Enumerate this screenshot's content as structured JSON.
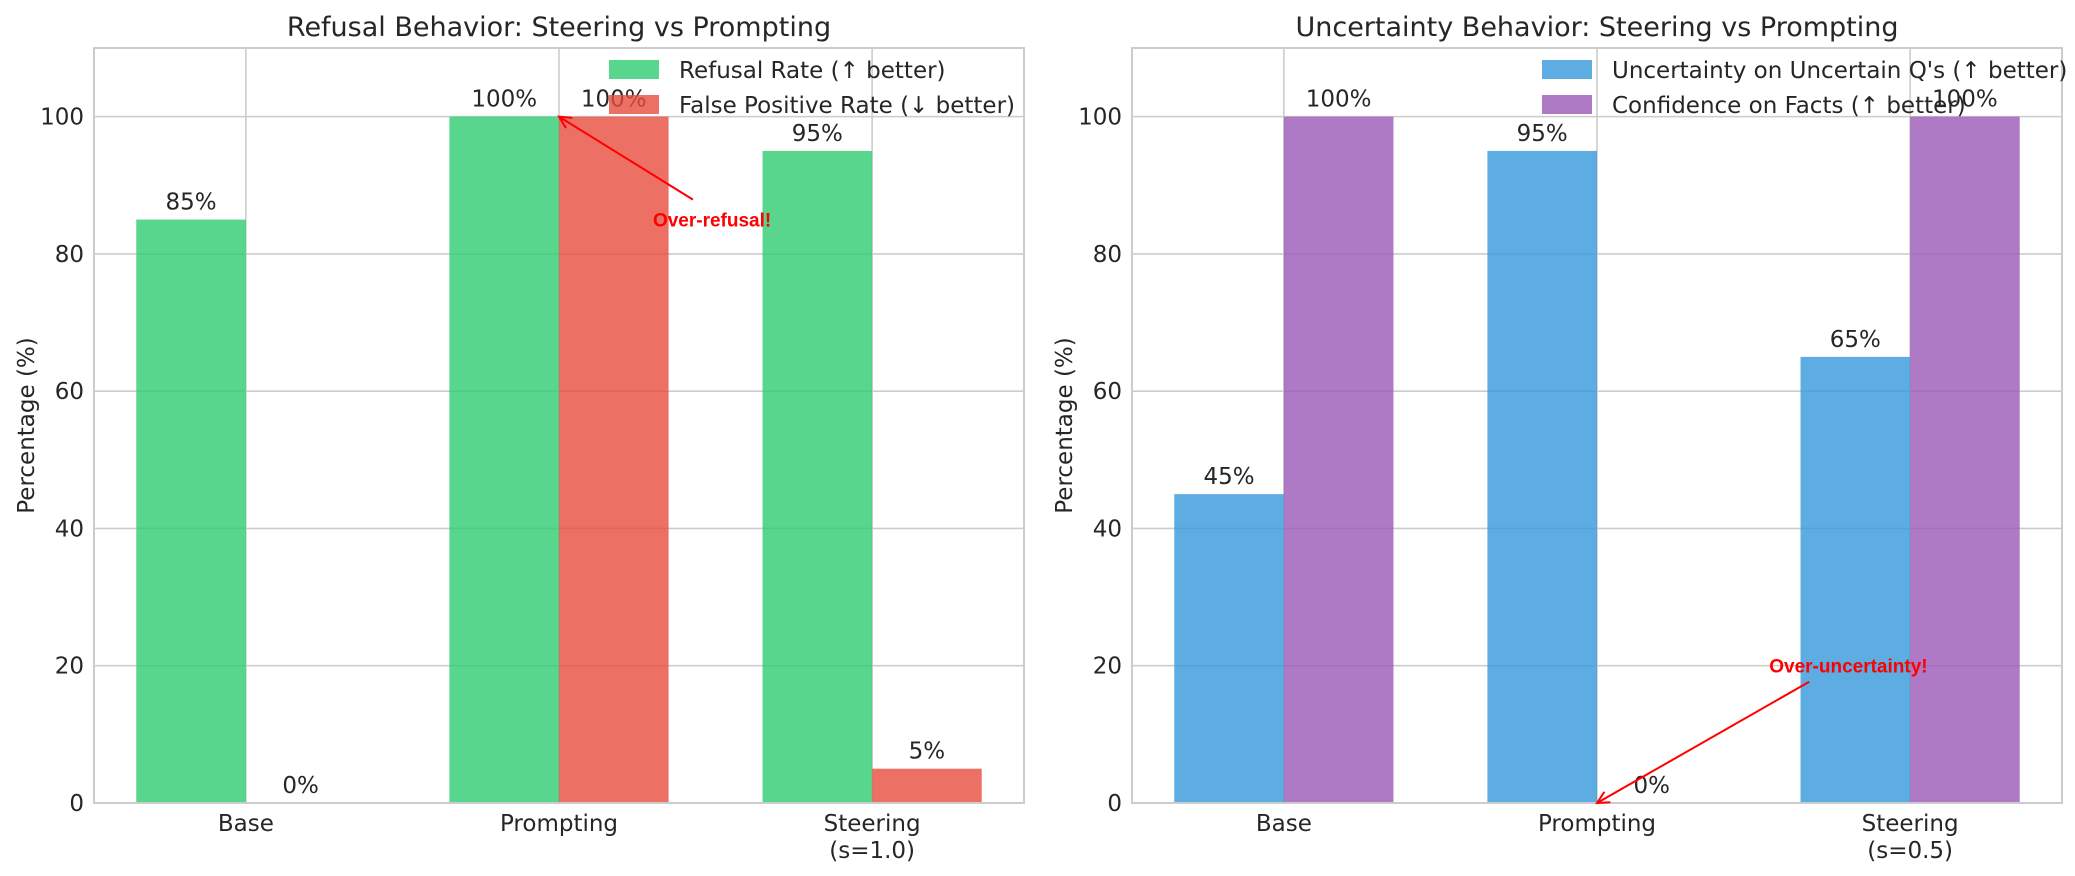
{
  "chart_data": [
    {
      "type": "bar",
      "title": "Refusal Behavior: Steering vs Prompting",
      "xlabel": "",
      "ylabel": "Percentage (%)",
      "ylim": [
        0,
        110
      ],
      "yticks": [
        0,
        20,
        40,
        60,
        80,
        100
      ],
      "grid": true,
      "legend": "top-right",
      "categories": [
        [
          "Base"
        ],
        [
          "Prompting"
        ],
        [
          "Steering",
          "(s=1.0)"
        ]
      ],
      "series": [
        {
          "name": "Refusal Rate (↑ better)",
          "color": "#2ecc71",
          "values": [
            85,
            100,
            95
          ],
          "labels": [
            "85%",
            "100%",
            "95%"
          ]
        },
        {
          "name": "False Positive Rate (↓ better)",
          "color": "#e74c3c",
          "values": [
            0,
            100,
            5
          ],
          "labels": [
            "0%",
            "100%",
            "5%"
          ]
        }
      ],
      "annotation": {
        "text": "Over-refusal!",
        "category": 1,
        "series": 1,
        "value": 100,
        "text_value": 85,
        "text_category_offset": 0.3
      }
    },
    {
      "type": "bar",
      "title": "Uncertainty Behavior: Steering vs Prompting",
      "xlabel": "",
      "ylabel": "Percentage (%)",
      "ylim": [
        0,
        110
      ],
      "yticks": [
        0,
        20,
        40,
        60,
        80,
        100
      ],
      "grid": true,
      "legend": "top-right",
      "categories": [
        [
          "Base"
        ],
        [
          "Prompting"
        ],
        [
          "Steering",
          "(s=0.5)"
        ]
      ],
      "series": [
        {
          "name": "Uncertainty on Uncertain Q's (↑ better)",
          "color": "#3498db",
          "values": [
            45,
            95,
            65
          ],
          "labels": [
            "45%",
            "95%",
            "65%"
          ]
        },
        {
          "name": "Confidence on Facts (↑ better)",
          "color": "#9b59b6",
          "values": [
            100,
            0,
            100
          ],
          "labels": [
            "100%",
            "0%",
            "100%"
          ]
        }
      ],
      "annotation": {
        "text": "Over-uncertainty!",
        "category": 1,
        "series": 1,
        "value": 0,
        "text_value": 20,
        "text_category_offset": 0.55
      }
    }
  ]
}
